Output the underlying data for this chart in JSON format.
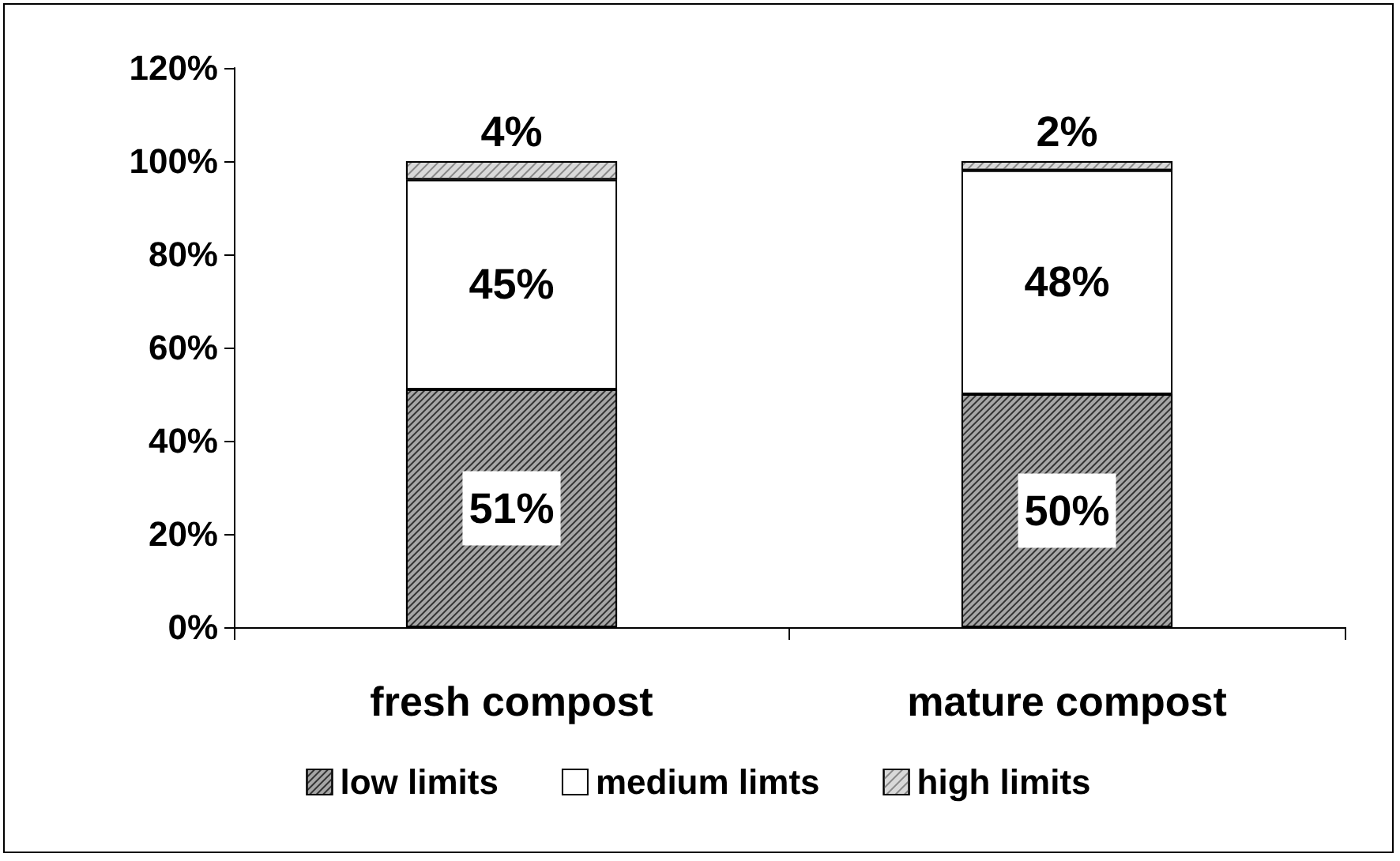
{
  "chart_data": {
    "type": "bar",
    "stacked": true,
    "categories": [
      "fresh compost",
      "mature compost"
    ],
    "series": [
      {
        "name": "low limits",
        "color": "#a6a6a6",
        "values": [
          51,
          50
        ],
        "value_labels": [
          "51%",
          "50%"
        ]
      },
      {
        "name": "medium limts",
        "color": "#ffffff",
        "values": [
          45,
          48
        ],
        "value_labels": [
          "45%",
          "48%"
        ]
      },
      {
        "name": "high limits",
        "color": "#d9d9d9",
        "values": [
          4,
          2
        ],
        "value_labels": [
          "4%",
          "2%"
        ]
      }
    ],
    "ylim": [
      0,
      120
    ],
    "yticks": [
      {
        "value": 0,
        "label": "0%"
      },
      {
        "value": 20,
        "label": "20%"
      },
      {
        "value": 40,
        "label": "40%"
      },
      {
        "value": 60,
        "label": "60%"
      },
      {
        "value": 80,
        "label": "80%"
      },
      {
        "value": 100,
        "label": "100%"
      },
      {
        "value": 120,
        "label": "120%"
      }
    ],
    "grid": false,
    "legend": "bottom"
  }
}
